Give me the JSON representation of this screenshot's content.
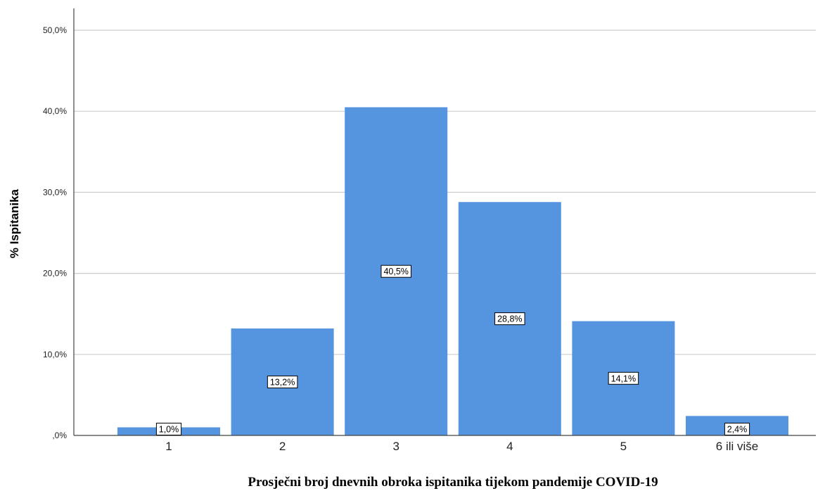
{
  "chart_data": {
    "type": "bar",
    "categories": [
      "1",
      "2",
      "3",
      "4",
      "5",
      "6 ili više"
    ],
    "values": [
      1.0,
      13.2,
      40.5,
      28.8,
      14.1,
      2.4
    ],
    "data_labels": [
      "1,0%",
      "13,2%",
      "40,5%",
      "28,8%",
      "14,1%",
      "2,4%"
    ],
    "xlabel": "Prosječni broj dnevnih obroka ispitanika tijekom pandemije COVID-19",
    "ylabel": "% Ispitanika",
    "ylim": [
      0,
      50
    ],
    "yticks": [
      0,
      10,
      20,
      30,
      40,
      50
    ],
    "ytick_labels": [
      ",0%",
      "10,0%",
      "20,0%",
      "30,0%",
      "40,0%",
      "50,0%"
    ],
    "grid": true,
    "legend": "none",
    "colors": {
      "bar": "#5595e0",
      "grid": "#cccccc",
      "axis": "#444444",
      "label_box_border": "#000000",
      "label_box_fill": "#ffffff"
    }
  }
}
